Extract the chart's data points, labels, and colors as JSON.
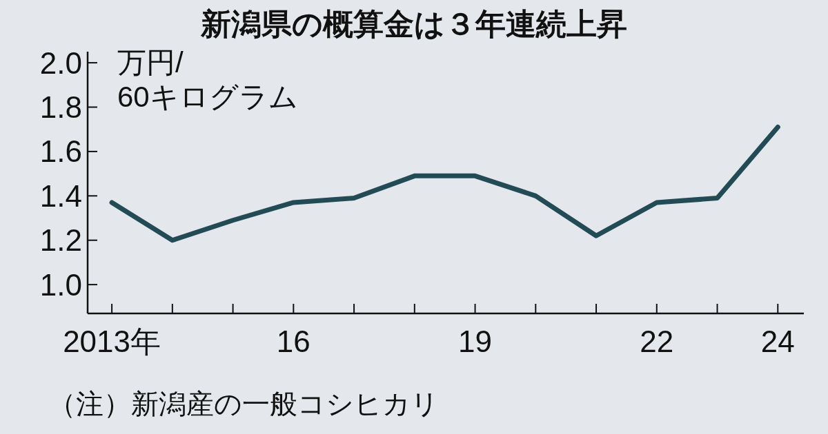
{
  "chart_data": {
    "type": "line",
    "title": "新潟県の概算金は３年連続上昇",
    "ylabel": "万円/\n60キログラム",
    "annotations": [
      "（注）新潟産の一般コシヒカリ"
    ],
    "x": [
      2013,
      2014,
      2015,
      2016,
      2017,
      2018,
      2019,
      2020,
      2021,
      2022,
      2023,
      2024
    ],
    "series": [
      {
        "color": "#234b56",
        "values": [
          1.37,
          1.2,
          1.29,
          1.37,
          1.39,
          1.49,
          1.49,
          1.4,
          1.22,
          1.37,
          1.39,
          1.71
        ]
      }
    ],
    "xlim": [
      2012.6,
      2024.43
    ],
    "ylim": [
      0.87,
      2.05
    ],
    "xticks": [
      {
        "value": 2013,
        "label": "2013年"
      },
      {
        "value": 2014,
        "label": null
      },
      {
        "value": 2015,
        "label": null
      },
      {
        "value": 2016,
        "label": "16"
      },
      {
        "value": 2017,
        "label": null
      },
      {
        "value": 2018,
        "label": null
      },
      {
        "value": 2019,
        "label": "19"
      },
      {
        "value": 2020,
        "label": null
      },
      {
        "value": 2021,
        "label": null
      },
      {
        "value": 2022,
        "label": "22"
      },
      {
        "value": 2023,
        "label": null
      },
      {
        "value": 2024,
        "label": "24"
      }
    ],
    "yticks": [
      {
        "value": 1.0,
        "label": "1.0"
      },
      1.2,
      1.4,
      1.6,
      1.8,
      {
        "value": 2.0,
        "label": "2.0"
      }
    ],
    "marker": "none",
    "line_style": "solid"
  }
}
